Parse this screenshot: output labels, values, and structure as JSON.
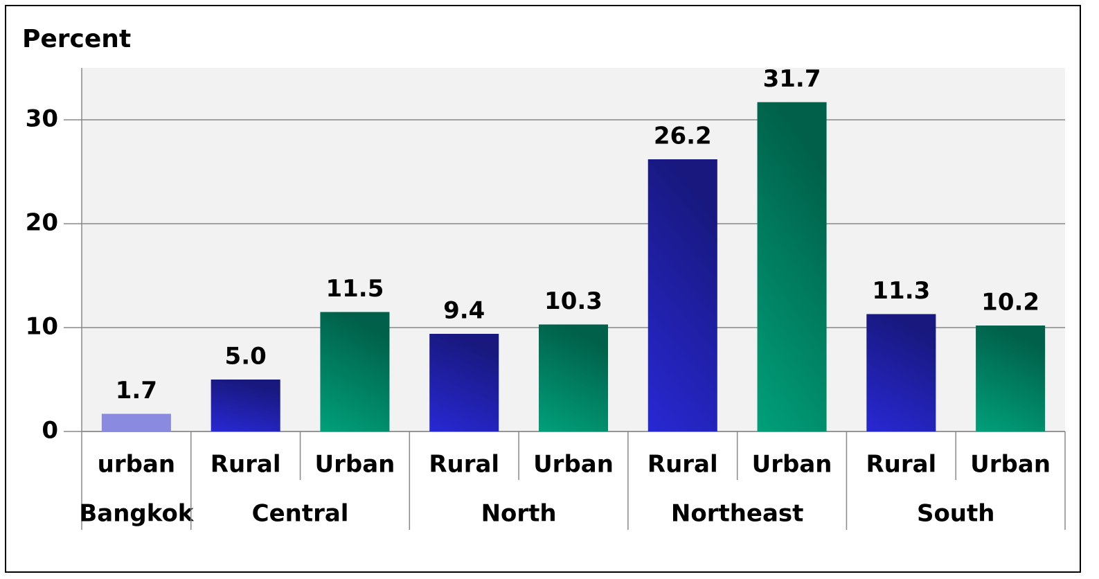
{
  "chart_data": {
    "type": "bar",
    "title": "Percent",
    "categories": [
      "urban",
      "Rural",
      "Urban",
      "Rural",
      "Urban",
      "Rural",
      "Urban",
      "Rural",
      "Urban"
    ],
    "groups": [
      {
        "label": "Bangkok",
        "size": 1
      },
      {
        "label": "Central",
        "size": 2
      },
      {
        "label": "North",
        "size": 2
      },
      {
        "label": "Northeast",
        "size": 2
      },
      {
        "label": "South",
        "size": 2
      }
    ],
    "values": [
      1.7,
      5,
      11.5,
      9.4,
      10.3,
      26.2,
      31.7,
      11.3,
      10.2
    ],
    "value_labels": [
      "1.7",
      "5.0",
      "11.5",
      "9.4",
      "10.3",
      "26.2",
      "31.7",
      "11.3",
      "10.2"
    ],
    "colors": [
      "#8a8ae0",
      "#2828d4",
      "#00a07a",
      "#2828d4",
      "#00a07a",
      "#2828d4",
      "#00a07a",
      "#2828d4",
      "#00a07a"
    ],
    "ylim": [
      0,
      35
    ],
    "yticks": [
      0,
      10,
      20,
      30
    ],
    "grid": true
  }
}
